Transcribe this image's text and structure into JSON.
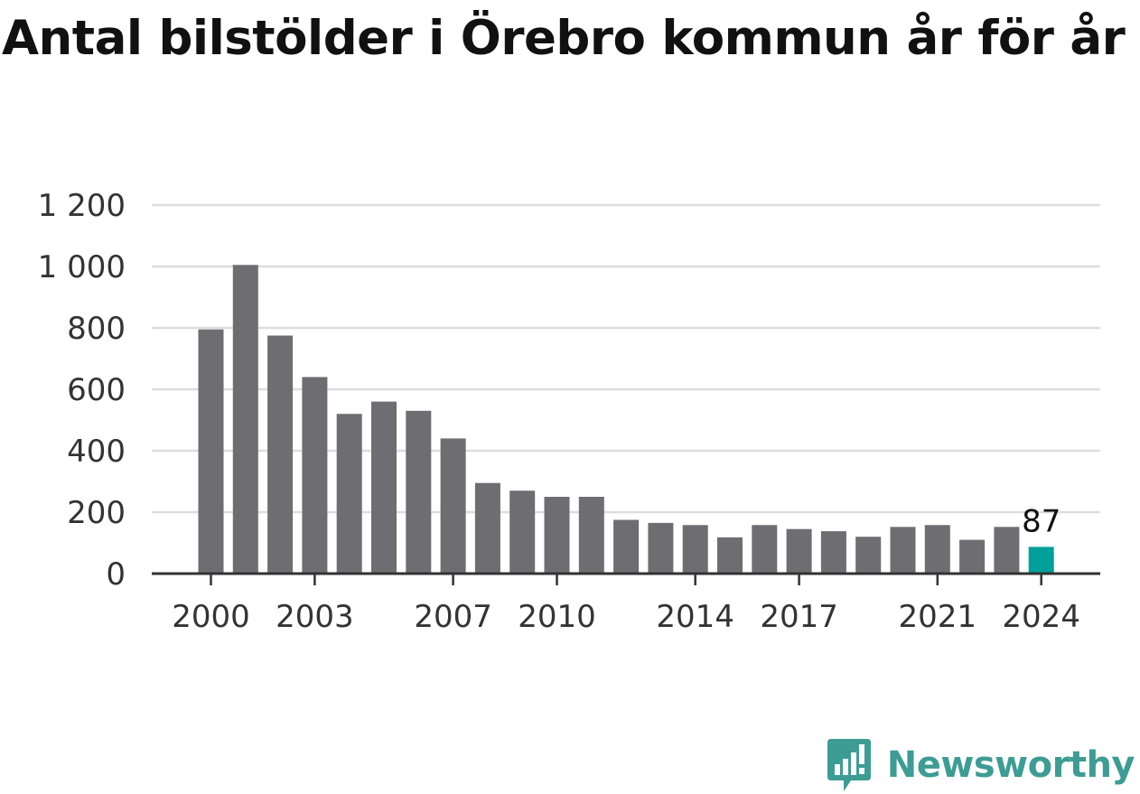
{
  "colors": {
    "bar": "#6e6d72",
    "highlight": "#00a09a",
    "grid": "#dddddd",
    "axis": "#333333",
    "brand": "#3d9c94"
  },
  "brand": {
    "name": "Newsworthy",
    "icon": "bar-chart-speech-bubble-icon"
  },
  "chart_data": {
    "type": "bar",
    "title": "Antal bilstölder i Örebro kommun år för år",
    "xlabel": "",
    "ylabel": "",
    "ylim": [
      0,
      1200
    ],
    "yticks": [
      0,
      200,
      400,
      600,
      800,
      1000,
      1200
    ],
    "ytick_labels": [
      "0",
      "200",
      "400",
      "600",
      "800",
      "1 000",
      "1 200"
    ],
    "xtick_labels": [
      "2000",
      "2003",
      "2007",
      "2010",
      "2014",
      "2017",
      "2021",
      "2024"
    ],
    "grid": true,
    "categories": [
      "2000",
      "2001",
      "2002",
      "2003",
      "2004",
      "2005",
      "2006",
      "2007",
      "2008",
      "2009",
      "2010",
      "2011",
      "2012",
      "2013",
      "2014",
      "2015",
      "2016",
      "2017",
      "2018",
      "2019",
      "2020",
      "2021",
      "2022",
      "2023",
      "2024"
    ],
    "values": [
      795,
      1005,
      775,
      640,
      520,
      560,
      530,
      440,
      295,
      270,
      250,
      250,
      175,
      165,
      158,
      118,
      158,
      145,
      138,
      120,
      152,
      158,
      110,
      152,
      87
    ],
    "highlight_index": 24,
    "data_labels": [
      {
        "category": "2024",
        "text": "87"
      }
    ]
  }
}
